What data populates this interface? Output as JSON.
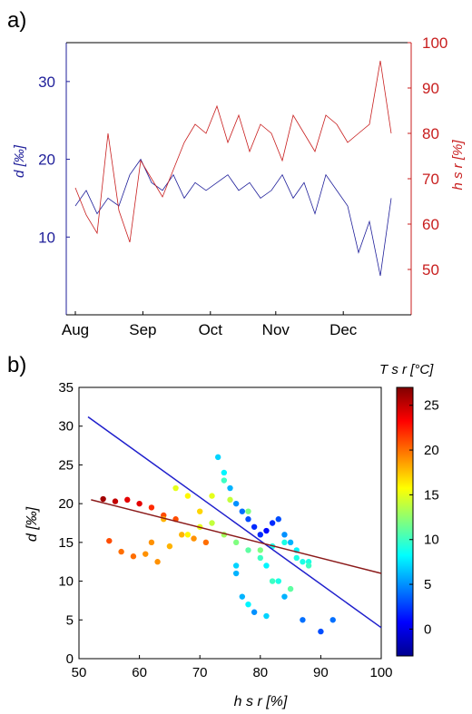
{
  "panel_a": {
    "label": "a)",
    "left_axis_label": "d [‰]",
    "right_axis_label": "h s r [%]",
    "left_color": "#1f1f9a",
    "right_color": "#c81e1e"
  },
  "panel_b": {
    "label": "b)",
    "xlabel": "h s r [%]",
    "ylabel": "d [‰]",
    "colorbar_label": "T s r [°C]"
  },
  "chart_data": [
    {
      "type": "line",
      "panel": "a",
      "x_ticks": [
        "Aug",
        "Sep",
        "Oct",
        "Nov",
        "Dec"
      ],
      "y_left": {
        "label": "d [‰]",
        "ticks": [
          10,
          20,
          30
        ],
        "lim": [
          0,
          35
        ]
      },
      "y_right": {
        "label": "h_s^r [%]",
        "ticks": [
          50,
          60,
          70,
          80,
          90,
          100
        ],
        "lim": [
          40,
          100
        ]
      },
      "series": [
        {
          "name": "d",
          "axis": "left",
          "color": "#1f1f9a",
          "day": [
            0,
            5,
            10,
            15,
            20,
            25,
            30,
            35,
            40,
            45,
            50,
            55,
            60,
            65,
            70,
            75,
            80,
            85,
            90,
            95,
            100,
            105,
            110,
            115,
            120,
            125,
            130,
            135,
            140,
            145
          ],
          "values": [
            14,
            16,
            13,
            15,
            14,
            18,
            20,
            17,
            16,
            18,
            15,
            17,
            16,
            17,
            18,
            16,
            17,
            15,
            16,
            18,
            15,
            17,
            13,
            18,
            16,
            14,
            8,
            12,
            5,
            15
          ]
        },
        {
          "name": "h_s^r",
          "axis": "right",
          "color": "#c81e1e",
          "day": [
            0,
            5,
            10,
            15,
            20,
            25,
            30,
            35,
            40,
            45,
            50,
            55,
            60,
            65,
            70,
            75,
            80,
            85,
            90,
            95,
            100,
            105,
            110,
            115,
            120,
            125,
            130,
            135,
            140,
            145
          ],
          "values": [
            68,
            62,
            58,
            80,
            63,
            56,
            74,
            70,
            66,
            72,
            78,
            82,
            80,
            86,
            78,
            84,
            76,
            82,
            80,
            74,
            84,
            80,
            76,
            84,
            82,
            78,
            80,
            82,
            96,
            80
          ]
        }
      ]
    },
    {
      "type": "scatter",
      "panel": "b",
      "xlim": [
        50,
        100
      ],
      "ylim": [
        0,
        35
      ],
      "x_ticks": [
        50,
        60,
        70,
        80,
        90,
        100
      ],
      "y_ticks": [
        0,
        5,
        10,
        15,
        20,
        25,
        30,
        35
      ],
      "colorbar": {
        "label": "T_s^r [°C]",
        "ticks": [
          0,
          5,
          10,
          15,
          20,
          25
        ],
        "lim": [
          -3,
          27
        ]
      },
      "fit_lines": [
        {
          "color": "#1f1fcc",
          "x": [
            51.5,
            100
          ],
          "y": [
            31.2,
            4.0
          ]
        },
        {
          "color": "#8b1a1a",
          "x": [
            52,
            100
          ],
          "y": [
            20.5,
            11.0
          ]
        }
      ],
      "x": [
        54,
        56,
        58,
        60,
        62,
        64,
        66,
        55,
        57,
        59,
        61,
        63,
        65,
        68,
        70,
        72,
        74,
        76,
        78,
        80,
        82,
        84,
        86,
        88,
        73,
        74,
        75,
        76,
        77,
        78,
        79,
        80,
        81,
        82,
        83,
        84,
        85,
        86,
        87,
        88,
        72,
        75,
        78,
        81,
        84,
        87,
        90,
        92,
        70,
        68,
        66,
        64,
        62,
        76,
        77,
        79,
        81,
        83,
        85,
        74,
        71,
        69,
        67,
        80,
        82,
        78,
        76
      ],
      "y": [
        20.6,
        20.3,
        20.5,
        20,
        19.5,
        18.5,
        18,
        15.2,
        13.8,
        13.2,
        13.5,
        12.5,
        14.5,
        16,
        17,
        17.5,
        16,
        15,
        14,
        13,
        14.5,
        15,
        13,
        12.5,
        26,
        24,
        22,
        20,
        19,
        18,
        17,
        16,
        16.5,
        17.5,
        18,
        16,
        15,
        14,
        12.5,
        12,
        21,
        20.5,
        19,
        12,
        8,
        5,
        3.5,
        5,
        19,
        21,
        22,
        18,
        15,
        11,
        8,
        6,
        5.5,
        10,
        9,
        23,
        15,
        15.5,
        16,
        14,
        10,
        7,
        12
      ],
      "t": [
        26,
        25,
        24,
        24,
        22,
        21,
        21,
        21,
        20,
        20,
        19,
        19,
        18,
        16,
        15,
        14,
        13,
        12,
        11,
        10,
        9,
        9,
        9,
        9,
        7,
        8,
        6,
        5,
        4,
        3,
        2,
        2,
        1,
        2,
        3,
        5,
        6,
        8,
        9,
        10,
        15,
        14,
        12,
        8,
        6,
        4,
        3,
        4,
        17,
        16,
        15,
        18,
        19,
        6,
        6,
        5,
        7,
        9,
        11,
        10,
        20,
        19,
        18,
        12,
        10,
        8,
        7
      ]
    }
  ]
}
